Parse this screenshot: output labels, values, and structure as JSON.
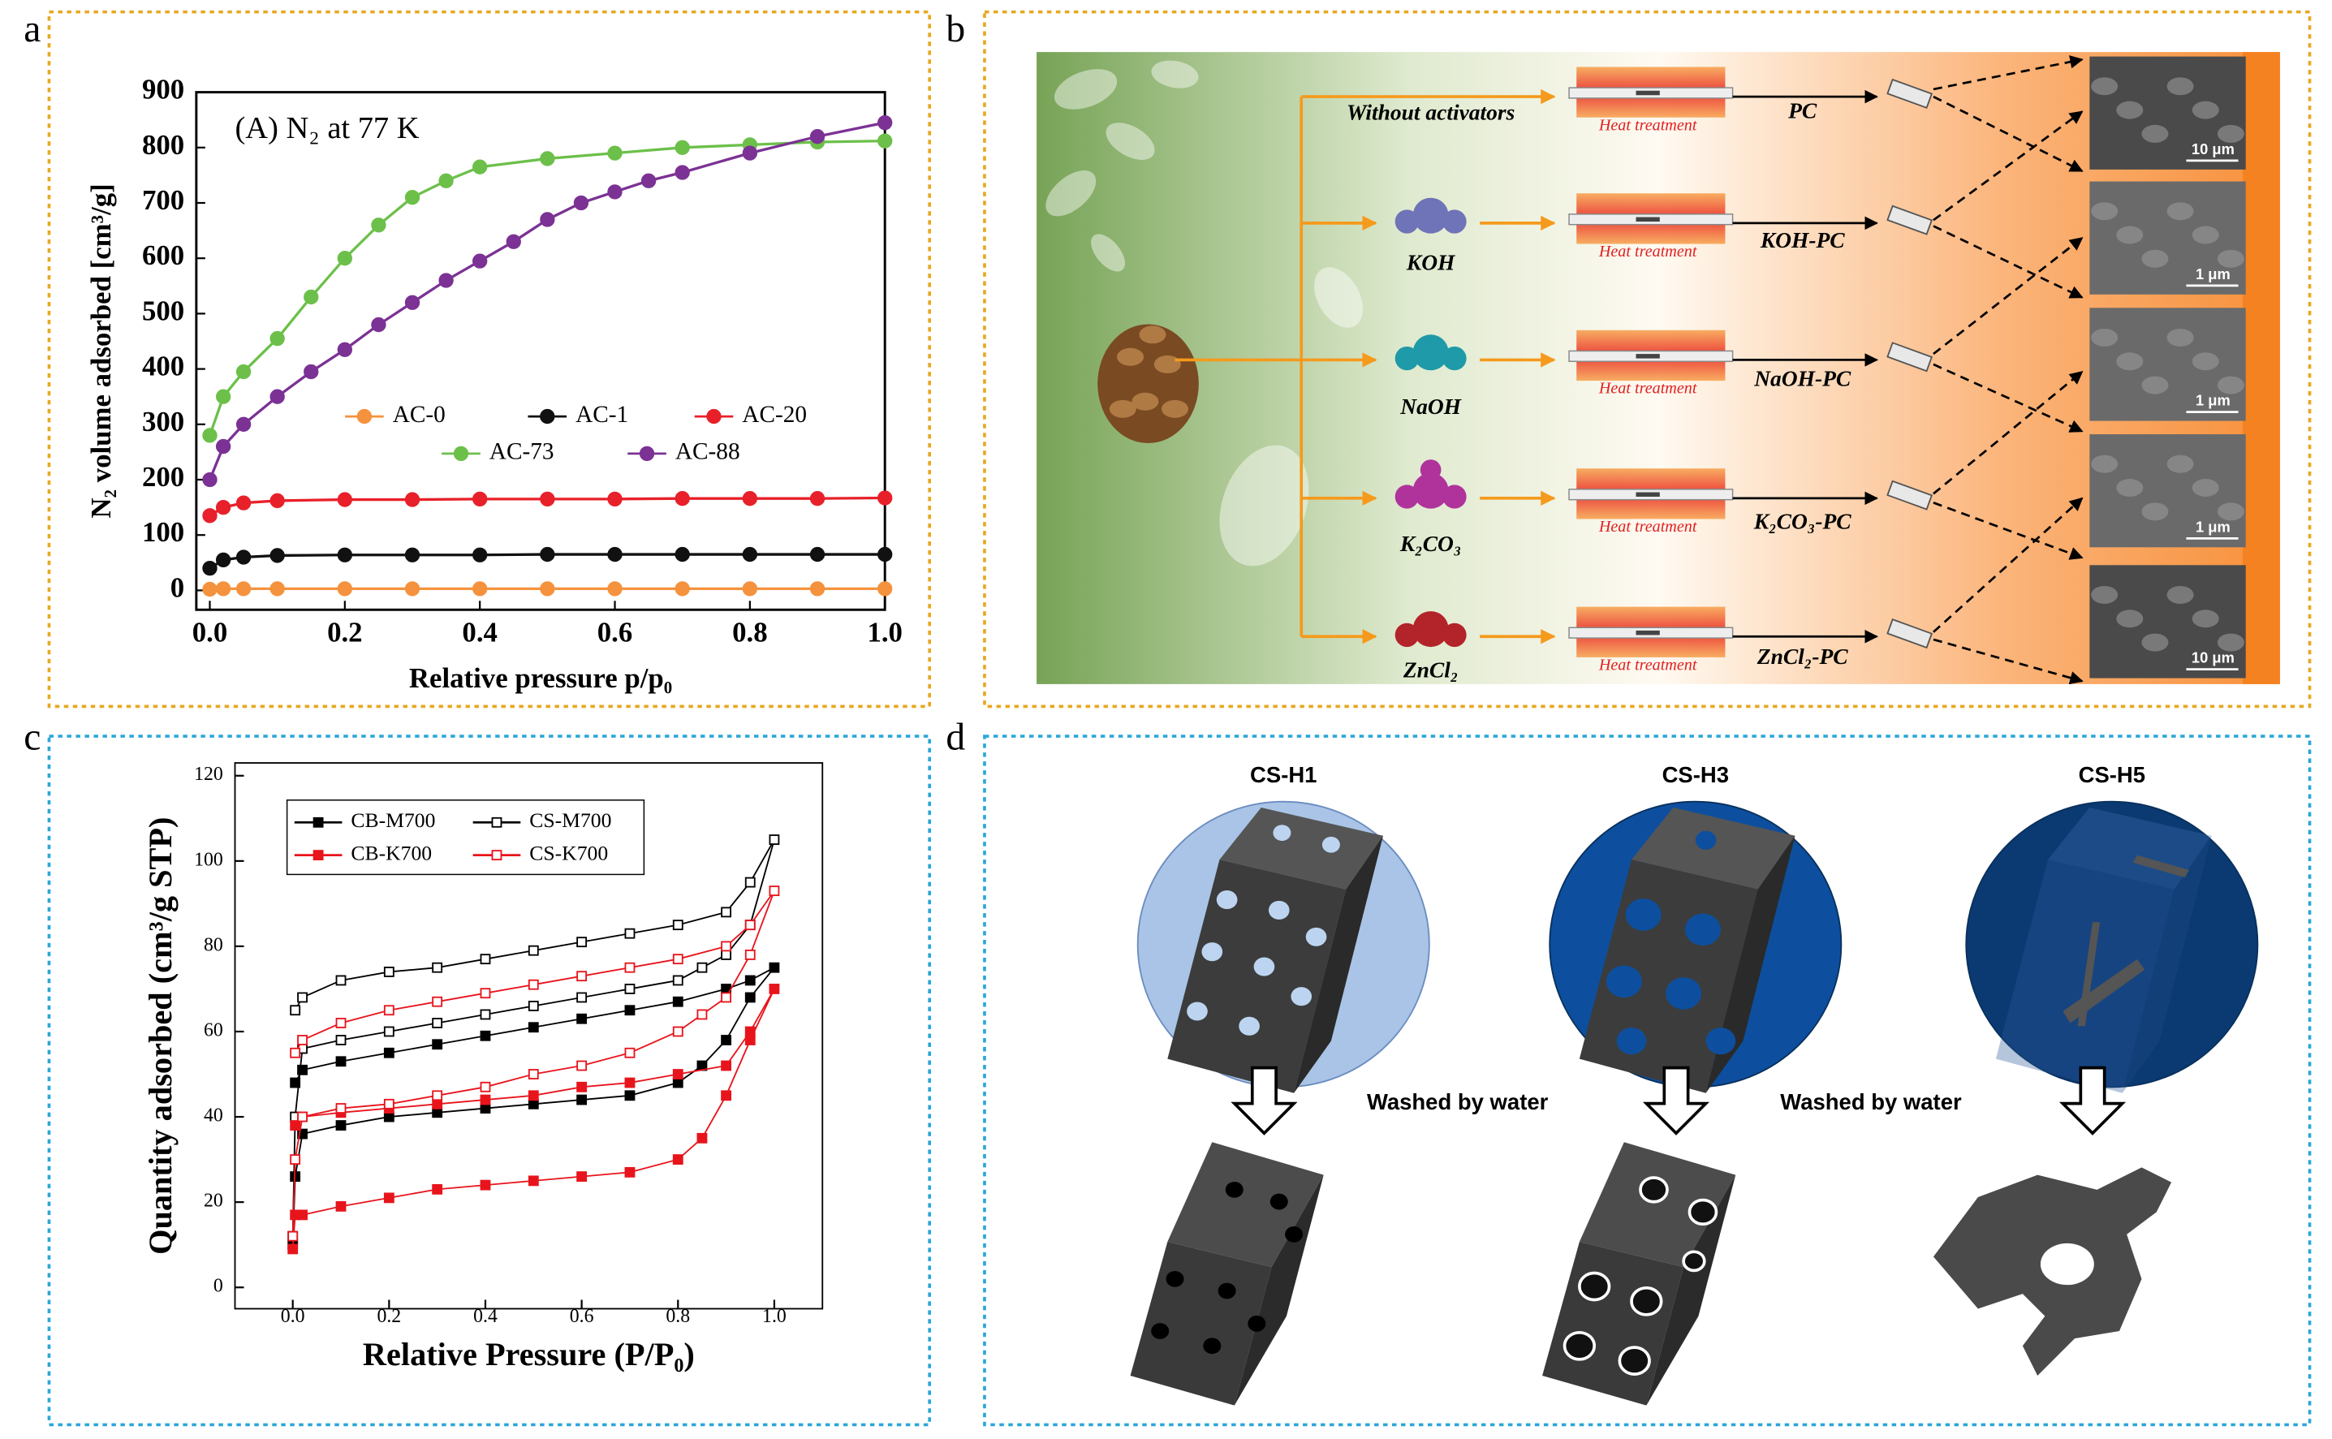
{
  "panel_labels": [
    "a",
    "b",
    "c",
    "d"
  ],
  "chart_data": [
    {
      "type": "line",
      "annotation": "(A) N₂ at 77 K",
      "x_label": "Relative pressure p/p₀",
      "y_label": "N₂ volume adsorbed [cm³/g]",
      "xlim": [
        -0.02,
        1.0
      ],
      "xticks": [
        {
          "value": 0,
          "label": "0.0"
        },
        0.2,
        0.4,
        0.6,
        0.8,
        {
          "value": 1,
          "label": "1.0"
        }
      ],
      "ylim": [
        -35,
        900
      ],
      "yticks": [
        0,
        100,
        200,
        300,
        400,
        500,
        600,
        700,
        800,
        900
      ],
      "series": [
        {
          "name": "AC-0",
          "color": "#f5923e",
          "marker": "circle",
          "filled": true,
          "x": [
            0,
            0.02,
            0.05,
            0.1,
            0.2,
            0.3,
            0.4,
            0.5,
            0.6,
            0.7,
            0.8,
            0.9,
            1.0
          ],
          "values": [
            2,
            3,
            3,
            3,
            3,
            3,
            3,
            3,
            3,
            3,
            3,
            3,
            3
          ]
        },
        {
          "name": "AC-1",
          "color": "#111111",
          "marker": "circle",
          "filled": true,
          "x": [
            0,
            0.02,
            0.05,
            0.1,
            0.2,
            0.3,
            0.4,
            0.5,
            0.6,
            0.7,
            0.8,
            0.9,
            1.0
          ],
          "values": [
            40,
            55,
            60,
            63,
            64,
            64,
            64,
            65,
            65,
            65,
            65,
            65,
            65
          ]
        },
        {
          "name": "AC-20",
          "color": "#e8202a",
          "marker": "circle",
          "filled": true,
          "x": [
            0,
            0.02,
            0.05,
            0.1,
            0.2,
            0.3,
            0.4,
            0.5,
            0.6,
            0.7,
            0.8,
            0.9,
            1.0
          ],
          "values": [
            135,
            150,
            158,
            162,
            164,
            164,
            165,
            165,
            165,
            166,
            166,
            166,
            167
          ]
        },
        {
          "name": "AC-73",
          "color": "#6cc04a",
          "marker": "circle",
          "filled": true,
          "x": [
            0,
            0.02,
            0.05,
            0.1,
            0.15,
            0.2,
            0.25,
            0.3,
            0.35,
            0.4,
            0.5,
            0.6,
            0.7,
            0.8,
            0.9,
            1.0
          ],
          "values": [
            280,
            350,
            395,
            455,
            530,
            600,
            660,
            710,
            740,
            765,
            780,
            790,
            800,
            805,
            810,
            812
          ]
        },
        {
          "name": "AC-88",
          "color": "#7b3294",
          "marker": "circle",
          "filled": true,
          "x": [
            0,
            0.02,
            0.05,
            0.1,
            0.15,
            0.2,
            0.25,
            0.3,
            0.35,
            0.4,
            0.45,
            0.5,
            0.55,
            0.6,
            0.65,
            0.7,
            0.8,
            0.9,
            1.0
          ],
          "values": [
            200,
            260,
            300,
            350,
            395,
            435,
            480,
            520,
            560,
            595,
            630,
            670,
            700,
            720,
            740,
            755,
            790,
            820,
            845
          ]
        }
      ]
    },
    {
      "type": "line",
      "x_label": "Relative Pressure (P/P₀)",
      "y_label": "Quantity adsorbed (cm³/g STP)",
      "xlim": [
        -0.12,
        1.1
      ],
      "xticks": [
        {
          "value": 0,
          "label": "0.0"
        },
        0.2,
        0.4,
        0.6,
        0.8,
        {
          "value": 1,
          "label": "1.0"
        }
      ],
      "ylim": [
        -5,
        123
      ],
      "yticks": [
        0,
        20,
        40,
        60,
        80,
        100,
        120
      ],
      "series": [
        {
          "name": "CB-M700",
          "color": "#000000",
          "marker": "square",
          "filled": true,
          "x": [
            0,
            0.005,
            0.02,
            0.1,
            0.2,
            0.3,
            0.4,
            0.5,
            0.6,
            0.7,
            0.8,
            0.85,
            0.9,
            0.95,
            1.0,
            0.95,
            0.9,
            0.8,
            0.7,
            0.6,
            0.5,
            0.4,
            0.3,
            0.2,
            0.1,
            0.02,
            0.005
          ],
          "values": [
            10,
            26,
            36,
            38,
            40,
            41,
            42,
            43,
            44,
            45,
            48,
            52,
            58,
            68,
            75,
            72,
            70,
            67,
            65,
            63,
            61,
            59,
            57,
            55,
            53,
            51,
            48
          ]
        },
        {
          "name": "CS-M700",
          "color": "#000000",
          "marker": "square",
          "filled": false,
          "x": [
            0,
            0.005,
            0.02,
            0.1,
            0.2,
            0.3,
            0.4,
            0.5,
            0.6,
            0.7,
            0.8,
            0.85,
            0.9,
            0.95,
            1.0,
            0.95,
            0.9,
            0.8,
            0.7,
            0.6,
            0.5,
            0.4,
            0.3,
            0.2,
            0.1,
            0.02,
            0.005
          ],
          "values": [
            12,
            40,
            56,
            58,
            60,
            62,
            64,
            66,
            68,
            70,
            72,
            75,
            78,
            85,
            105,
            95,
            88,
            85,
            83,
            81,
            79,
            77,
            75,
            74,
            72,
            68,
            65
          ]
        },
        {
          "name": "CB-K700",
          "color": "#e8141c",
          "marker": "square",
          "filled": true,
          "x": [
            0,
            0.005,
            0.02,
            0.1,
            0.2,
            0.3,
            0.4,
            0.5,
            0.6,
            0.7,
            0.8,
            0.85,
            0.9,
            0.95,
            1.0,
            0.95,
            0.9,
            0.8,
            0.7,
            0.6,
            0.5,
            0.4,
            0.3,
            0.2,
            0.1,
            0.02,
            0.005
          ],
          "values": [
            9,
            17,
            17,
            19,
            21,
            23,
            24,
            25,
            26,
            27,
            30,
            35,
            45,
            58,
            70,
            60,
            52,
            50,
            48,
            47,
            45,
            44,
            43,
            42,
            41,
            40,
            38
          ]
        },
        {
          "name": "CS-K700",
          "color": "#e8141c",
          "marker": "square",
          "filled": false,
          "x": [
            0,
            0.005,
            0.02,
            0.1,
            0.2,
            0.3,
            0.4,
            0.5,
            0.6,
            0.7,
            0.8,
            0.85,
            0.9,
            0.95,
            1.0,
            0.95,
            0.9,
            0.8,
            0.7,
            0.6,
            0.5,
            0.4,
            0.3,
            0.2,
            0.1,
            0.02,
            0.005
          ],
          "values": [
            12,
            30,
            40,
            42,
            43,
            45,
            47,
            50,
            52,
            55,
            60,
            64,
            68,
            78,
            93,
            85,
            80,
            77,
            75,
            73,
            71,
            69,
            67,
            65,
            62,
            58,
            55
          ]
        }
      ]
    }
  ],
  "diagram_b": {
    "activators": [
      "Without activators",
      "KOH",
      "NaOH",
      "K₂CO₃",
      "ZnCl₂"
    ],
    "heat_labels": [
      "Heat treatment",
      "Heat treatment",
      "Heat treatment",
      "Heat treatment",
      "Heat treatment"
    ],
    "products": [
      "PC",
      "KOH-PC",
      "NaOH-PC",
      "K₂CO₃-PC",
      "ZnCl₂-PC"
    ],
    "scale_bars": [
      "10 μm",
      "1 μm",
      "1 μm",
      "1 μm",
      "10 μm"
    ]
  },
  "diagram_d": {
    "titles": [
      "CS-H1",
      "CS-H3",
      "CS-H5"
    ],
    "arrow_labels": [
      "Washed by water",
      "Washed by water"
    ]
  }
}
